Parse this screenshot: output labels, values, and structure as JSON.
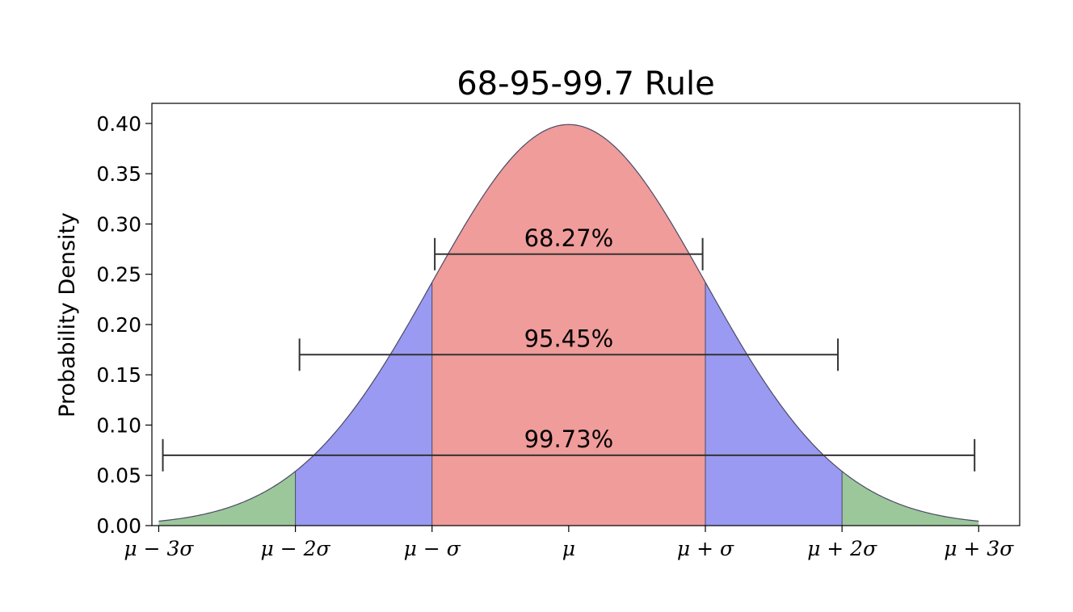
{
  "chart_data": {
    "type": "area",
    "title": "68-95-99.7 Rule",
    "xlabel": "",
    "ylabel": "Probability Density",
    "xlim": [
      -3.05,
      3.3
    ],
    "ylim": [
      0.0,
      0.42
    ],
    "x_ticks": [
      -3,
      -2,
      -1,
      0,
      1,
      2,
      3
    ],
    "x_tick_labels": [
      "μ − 3σ",
      "μ − 2σ",
      "μ − σ",
      "μ",
      "μ + σ",
      "μ + 2σ",
      "μ + 3σ"
    ],
    "y_ticks": [
      0.0,
      0.05,
      0.1,
      0.15,
      0.2,
      0.25,
      0.3,
      0.35,
      0.4
    ],
    "y_tick_labels": [
      "0.00",
      "0.05",
      "0.10",
      "0.15",
      "0.20",
      "0.25",
      "0.30",
      "0.35",
      "0.40"
    ],
    "grid": false,
    "curve": {
      "function": "standard normal pdf",
      "x_range": [
        -3,
        3
      ],
      "line_color": "#4a4a66"
    },
    "regions": [
      {
        "from": -3,
        "to": -2,
        "color": "#9cc79a"
      },
      {
        "from": -2,
        "to": -1,
        "color": "#9a9af2"
      },
      {
        "from": -1,
        "to": 1,
        "color": "#ef9c9a"
      },
      {
        "from": 1,
        "to": 2,
        "color": "#9a9af2"
      },
      {
        "from": 2,
        "to": 3,
        "color": "#9cc79a"
      }
    ],
    "annotations": [
      {
        "text": "68.27%",
        "x_from": -0.98,
        "x_to": 0.98,
        "y": 0.27
      },
      {
        "text": "95.45%",
        "x_from": -1.97,
        "x_to": 1.97,
        "y": 0.17
      },
      {
        "text": "99.73%",
        "x_from": -2.97,
        "x_to": 2.97,
        "y": 0.07
      }
    ]
  }
}
